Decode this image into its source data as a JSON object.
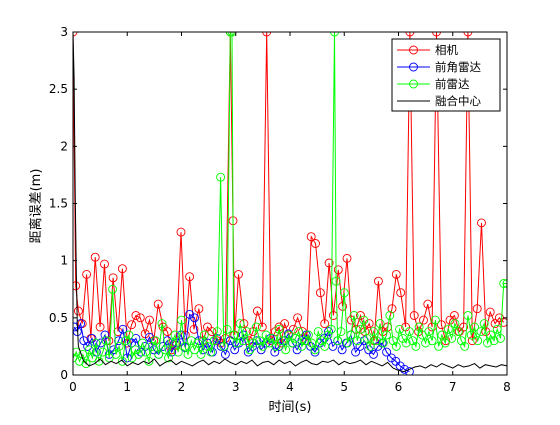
{
  "chart_data": {
    "type": "line",
    "title": "",
    "xlabel": "时间(s)",
    "ylabel": "距离误差(m)",
    "xlim": [
      0,
      8
    ],
    "ylim": [
      0,
      3
    ],
    "xticks": [
      "0",
      "1",
      "2",
      "3",
      "4",
      "5",
      "6",
      "7",
      "8"
    ],
    "yticks": [
      "0",
      "0.5",
      "1",
      "1.5",
      "2",
      "2.5",
      "3"
    ],
    "grid": false,
    "legend_position": "top-right",
    "series": [
      {
        "name": "相机",
        "color": "#ff0000",
        "marker": "circle",
        "x": [
          0.0,
          0.05,
          0.1,
          0.17,
          0.25,
          0.33,
          0.41,
          0.5,
          0.58,
          0.66,
          0.74,
          0.83,
          0.91,
          1.0,
          1.08,
          1.16,
          1.24,
          1.33,
          1.41,
          1.49,
          1.57,
          1.66,
          1.74,
          1.82,
          1.9,
          1.99,
          2.07,
          2.15,
          2.23,
          2.32,
          2.4,
          2.48,
          2.56,
          2.65,
          2.73,
          2.81,
          2.9,
          2.95,
          2.98,
          3.05,
          3.15,
          3.24,
          3.32,
          3.4,
          3.49,
          3.57,
          3.65,
          3.73,
          3.8,
          3.84,
          3.9,
          3.98,
          4.06,
          4.14,
          4.23,
          4.31,
          4.39,
          4.47,
          4.56,
          4.64,
          4.72,
          4.8,
          4.89,
          4.97,
          5.05,
          5.13,
          5.22,
          5.3,
          5.38,
          5.46,
          5.55,
          5.63,
          5.71,
          5.8,
          5.88,
          5.96,
          6.04,
          6.13,
          6.21,
          6.29,
          6.37,
          6.46,
          6.54,
          6.62,
          6.7,
          6.79,
          6.87,
          6.95,
          7.03,
          7.12,
          7.2,
          7.28,
          7.36,
          7.45,
          7.53,
          7.61,
          7.69,
          7.78,
          7.86,
          7.94
        ],
        "y": [
          3.0,
          0.78,
          0.56,
          0.45,
          0.88,
          0.32,
          1.03,
          0.42,
          0.97,
          0.3,
          0.85,
          0.38,
          0.93,
          0.28,
          0.44,
          0.52,
          0.5,
          0.36,
          0.48,
          0.3,
          0.62,
          0.42,
          0.38,
          0.22,
          0.26,
          1.25,
          0.35,
          0.86,
          0.4,
          0.58,
          0.3,
          0.42,
          0.38,
          0.3,
          0.28,
          0.32,
          3.0,
          1.35,
          0.35,
          0.88,
          0.45,
          0.3,
          0.38,
          0.56,
          0.42,
          3.0,
          0.3,
          0.38,
          0.42,
          0.28,
          0.45,
          0.35,
          0.4,
          0.5,
          0.38,
          0.3,
          1.21,
          1.15,
          0.72,
          0.45,
          0.98,
          0.52,
          0.92,
          0.6,
          1.02,
          0.48,
          0.4,
          0.52,
          0.38,
          0.45,
          0.3,
          0.82,
          0.38,
          0.42,
          0.58,
          0.88,
          0.72,
          0.42,
          3.0,
          0.52,
          0.38,
          0.48,
          0.62,
          0.42,
          3.0,
          0.44,
          0.3,
          0.48,
          0.52,
          0.38,
          0.42,
          3.0,
          0.3,
          0.58,
          1.33,
          0.38,
          0.55,
          0.45,
          0.5,
          0.46
        ]
      },
      {
        "name": "前角雷达",
        "color": "#0000ff",
        "marker": "circle",
        "x": [
          0.02,
          0.08,
          0.14,
          0.2,
          0.27,
          0.35,
          0.43,
          0.51,
          0.59,
          0.67,
          0.75,
          0.84,
          0.92,
          1.0,
          1.08,
          1.16,
          1.25,
          1.33,
          1.41,
          1.49,
          1.58,
          1.66,
          1.74,
          1.82,
          1.91,
          1.99,
          2.07,
          2.15,
          2.24,
          2.32,
          2.4,
          2.48,
          2.57,
          2.65,
          2.73,
          2.81,
          2.9,
          2.98,
          3.06,
          3.14,
          3.23,
          3.31,
          3.39,
          3.47,
          3.56,
          3.64,
          3.72,
          3.8,
          3.89,
          3.97,
          4.05,
          4.13,
          4.22,
          4.3,
          4.38,
          4.46,
          4.55,
          4.63,
          4.71,
          4.79,
          4.88,
          4.96,
          5.04,
          5.12,
          5.21,
          5.29,
          5.37,
          5.45,
          5.54,
          5.62,
          5.7,
          5.78,
          5.87,
          5.95,
          6.03,
          6.11,
          6.2
        ],
        "y": [
          0.42,
          0.38,
          0.45,
          0.3,
          0.25,
          0.32,
          0.2,
          0.28,
          0.35,
          0.18,
          0.22,
          0.3,
          0.4,
          0.15,
          0.28,
          0.32,
          0.2,
          0.25,
          0.33,
          0.22,
          0.18,
          0.25,
          0.3,
          0.2,
          0.28,
          0.35,
          0.24,
          0.53,
          0.5,
          0.3,
          0.22,
          0.28,
          0.2,
          0.32,
          0.25,
          0.18,
          0.3,
          0.22,
          0.28,
          0.35,
          0.2,
          0.25,
          0.3,
          0.22,
          0.28,
          0.32,
          0.2,
          0.25,
          0.3,
          0.36,
          0.28,
          0.22,
          0.3,
          0.35,
          0.25,
          0.2,
          0.28,
          0.32,
          0.38,
          0.25,
          0.3,
          0.22,
          0.28,
          0.35,
          0.2,
          0.25,
          0.3,
          0.22,
          0.18,
          0.25,
          0.28,
          0.2,
          0.15,
          0.12,
          0.08,
          0.05,
          0.03
        ]
      },
      {
        "name": "前雷达",
        "color": "#00ff00",
        "marker": "circle",
        "x": [
          0.0,
          0.06,
          0.12,
          0.18,
          0.24,
          0.3,
          0.36,
          0.42,
          0.48,
          0.55,
          0.61,
          0.67,
          0.73,
          0.79,
          0.85,
          0.91,
          0.97,
          1.03,
          1.09,
          1.15,
          1.21,
          1.28,
          1.34,
          1.4,
          1.46,
          1.52,
          1.58,
          1.64,
          1.7,
          1.76,
          1.82,
          1.88,
          1.94,
          2.0,
          2.06,
          2.12,
          2.18,
          2.24,
          2.3,
          2.36,
          2.42,
          2.48,
          2.54,
          2.6,
          2.66,
          2.72,
          2.78,
          2.84,
          2.9,
          2.93,
          2.96,
          3.02,
          3.08,
          3.14,
          3.2,
          3.26,
          3.32,
          3.38,
          3.44,
          3.5,
          3.56,
          3.62,
          3.68,
          3.74,
          3.8,
          3.86,
          3.92,
          3.98,
          4.04,
          4.1,
          4.16,
          4.22,
          4.28,
          4.34,
          4.4,
          4.46,
          4.52,
          4.58,
          4.64,
          4.7,
          4.76,
          4.82,
          4.85,
          4.88,
          4.94,
          5.0,
          5.06,
          5.12,
          5.18,
          5.24,
          5.3,
          5.36,
          5.42,
          5.48,
          5.54,
          5.6,
          5.66,
          5.72,
          5.78,
          5.84,
          5.9,
          5.96,
          6.02,
          6.08,
          6.14,
          6.2,
          6.26,
          6.32,
          6.38,
          6.44,
          6.5,
          6.56,
          6.62,
          6.68,
          6.74,
          6.8,
          6.86,
          6.92,
          6.98,
          7.04,
          7.1,
          7.16,
          7.22,
          7.28,
          7.34,
          7.4,
          7.46,
          7.52,
          7.58,
          7.64,
          7.7,
          7.76,
          7.82,
          7.88,
          7.94,
          8.0
        ],
        "y": [
          0.15,
          0.2,
          0.12,
          0.18,
          0.1,
          0.22,
          0.15,
          0.28,
          0.12,
          0.2,
          0.3,
          0.15,
          0.75,
          0.18,
          0.25,
          0.12,
          0.3,
          0.35,
          0.15,
          0.22,
          0.18,
          0.28,
          0.2,
          0.12,
          0.25,
          0.3,
          0.18,
          0.45,
          0.22,
          0.15,
          0.28,
          0.35,
          0.2,
          0.48,
          0.25,
          0.18,
          0.3,
          0.22,
          0.28,
          0.18,
          0.35,
          0.25,
          0.2,
          0.3,
          0.38,
          1.73,
          0.25,
          0.4,
          3.0,
          3.0,
          0.35,
          0.28,
          0.45,
          0.3,
          0.38,
          0.22,
          0.28,
          0.42,
          0.3,
          0.25,
          0.35,
          0.28,
          0.32,
          0.25,
          0.4,
          0.3,
          0.22,
          0.35,
          0.28,
          0.32,
          0.38,
          0.25,
          0.3,
          0.35,
          0.28,
          0.22,
          0.38,
          0.3,
          0.25,
          0.35,
          0.4,
          3.0,
          0.82,
          0.3,
          0.38,
          0.72,
          0.28,
          0.35,
          0.52,
          0.3,
          0.4,
          0.48,
          0.32,
          0.25,
          0.38,
          0.3,
          0.45,
          0.28,
          0.35,
          0.52,
          0.3,
          0.25,
          0.4,
          0.32,
          0.28,
          0.38,
          0.3,
          0.25,
          0.42,
          0.35,
          0.28,
          0.38,
          0.3,
          0.48,
          0.25,
          0.35,
          0.28,
          0.4,
          0.32,
          0.45,
          0.38,
          0.3,
          0.25,
          0.52,
          0.35,
          0.42,
          0.3,
          0.38,
          0.45,
          0.28,
          0.35,
          0.3,
          0.4,
          0.32,
          0.8,
          0.8
        ]
      },
      {
        "name": "融合中心",
        "color": "#000000",
        "marker": "none",
        "x": [
          0.0,
          0.02,
          0.04,
          0.06,
          0.08,
          0.1,
          0.2,
          0.3,
          0.4,
          0.5,
          0.6,
          0.7,
          0.8,
          0.9,
          1.0,
          1.1,
          1.2,
          1.3,
          1.4,
          1.5,
          1.6,
          1.7,
          1.8,
          1.9,
          2.0,
          2.1,
          2.2,
          2.3,
          2.4,
          2.5,
          2.6,
          2.7,
          2.8,
          2.9,
          3.0,
          3.1,
          3.2,
          3.3,
          3.4,
          3.5,
          3.6,
          3.7,
          3.8,
          3.9,
          4.0,
          4.1,
          4.2,
          4.3,
          4.4,
          4.5,
          4.6,
          4.7,
          4.8,
          4.9,
          5.0,
          5.1,
          5.2,
          5.3,
          5.4,
          5.5,
          5.6,
          5.7,
          5.8,
          5.9,
          6.0,
          6.1,
          6.2,
          6.3,
          6.4,
          6.5,
          6.6,
          6.7,
          6.8,
          6.9,
          7.0,
          7.1,
          7.2,
          7.3,
          7.4,
          7.5,
          7.6,
          7.7,
          7.8,
          7.9,
          8.0
        ],
        "y": [
          3.0,
          2.6,
          1.6,
          0.9,
          0.45,
          0.25,
          0.12,
          0.08,
          0.1,
          0.14,
          0.09,
          0.12,
          0.1,
          0.13,
          0.08,
          0.11,
          0.09,
          0.12,
          0.1,
          0.14,
          0.08,
          0.11,
          0.13,
          0.09,
          0.12,
          0.1,
          0.08,
          0.11,
          0.13,
          0.09,
          0.12,
          0.1,
          0.14,
          0.11,
          0.09,
          0.12,
          0.1,
          0.13,
          0.08,
          0.11,
          0.12,
          0.09,
          0.13,
          0.1,
          0.12,
          0.08,
          0.11,
          0.13,
          0.1,
          0.09,
          0.12,
          0.11,
          0.13,
          0.09,
          0.12,
          0.1,
          0.11,
          0.13,
          0.09,
          0.12,
          0.1,
          0.08,
          0.11,
          0.06,
          0.04,
          0.03,
          0.05,
          0.07,
          0.08,
          0.06,
          0.09,
          0.07,
          0.1,
          0.08,
          0.06,
          0.09,
          0.07,
          0.08,
          0.1,
          0.06,
          0.09,
          0.08,
          0.07,
          0.09,
          0.08
        ]
      }
    ]
  }
}
